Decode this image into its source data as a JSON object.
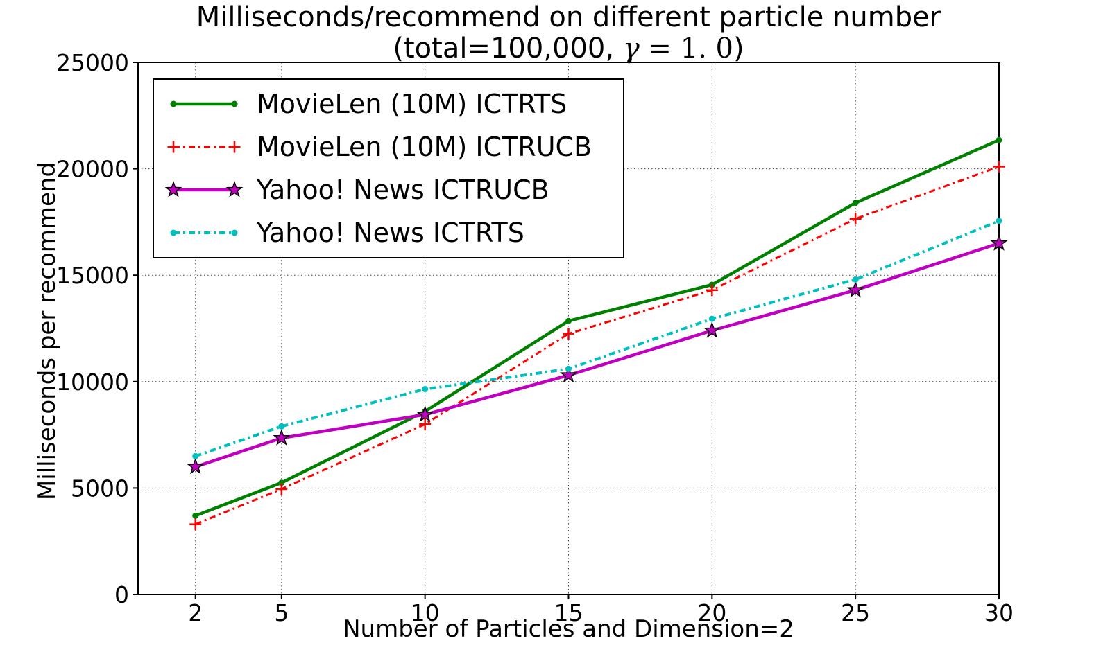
{
  "figure": {
    "subtitle_prefix": "(total=100,000, ",
    "subtitle_gamma": "γ",
    "subtitle_math": " = 1. 0",
    "subtitle_close": ")"
  },
  "chart_data": {
    "type": "line",
    "title": "Milliseconds/recommend on different particle number",
    "subtitle": "(total=100,000, γ = 1. 0)",
    "xlabel": "Number of Particles and Dimension=2",
    "ylabel": "Milliseconds per recommend",
    "x": [
      2,
      5,
      10,
      15,
      20,
      25,
      30
    ],
    "xlim": [
      0,
      30
    ],
    "ylim": [
      0,
      25000
    ],
    "xticks": [
      2,
      5,
      10,
      15,
      20,
      25,
      30
    ],
    "yticks": [
      0,
      5000,
      10000,
      15000,
      20000,
      25000
    ],
    "grid": true,
    "legend_position": "upper left",
    "series": [
      {
        "name": "MovieLen (10M) ICTRTS",
        "color": "#008000",
        "linestyle": "solid",
        "marker": "dot",
        "linewidth": 4.5,
        "values": [
          3700,
          5250,
          8600,
          12850,
          14550,
          18400,
          21350
        ]
      },
      {
        "name": "MovieLen (10M) ICTRUCB",
        "color": "#ff0000",
        "linestyle": "dashdot",
        "marker": "plus",
        "linewidth": 3,
        "values": [
          3300,
          4950,
          8000,
          12250,
          14300,
          17650,
          20100
        ]
      },
      {
        "name": "Yahoo! News ICTRUCB",
        "color": "#bf00bf",
        "linestyle": "solid",
        "marker": "star",
        "linewidth": 4.5,
        "values": [
          6000,
          7350,
          8450,
          10300,
          12400,
          14300,
          16500
        ]
      },
      {
        "name": "Yahoo! News ICTRTS",
        "color": "#00bfbf",
        "linestyle": "dashdot",
        "marker": "dot",
        "linewidth": 4,
        "values": [
          6500,
          7900,
          9650,
          10600,
          12950,
          14800,
          17550
        ]
      }
    ]
  }
}
